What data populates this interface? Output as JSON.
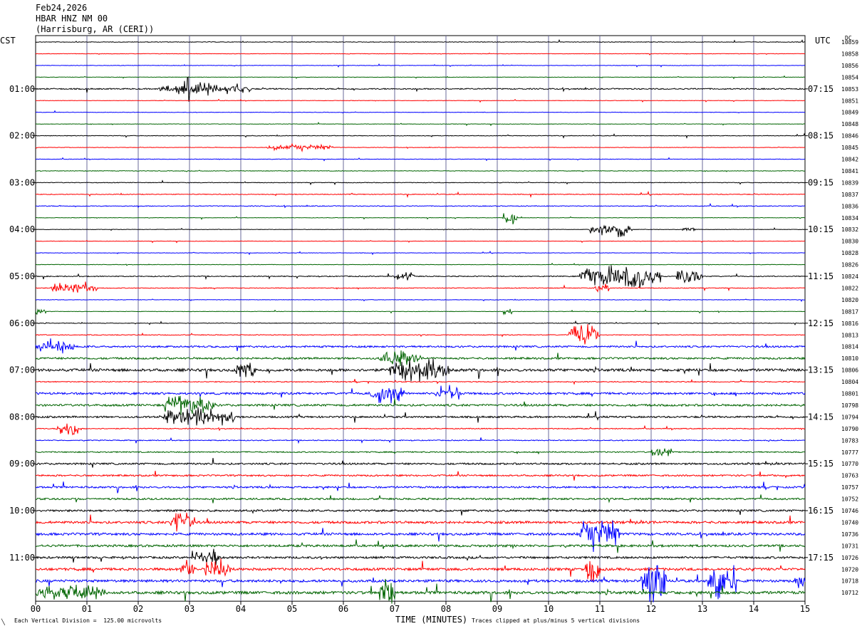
{
  "header": {
    "date": "Feb24,2026",
    "channel": "HBAR HNZ NM 00",
    "location": "(Harrisburg, AR (CERI))"
  },
  "left_timezone": "CST",
  "right_timezone": "UTC",
  "dc_label": "DC",
  "footer": {
    "x_title": "TIME (MINUTES)",
    "scale_note": "Each Vertical Division =  125.00 microvolts",
    "clip_note": "Traces clipped at plus/minus 5 vertical divisions",
    "corner_mark": "╲"
  },
  "chart_data": {
    "type": "line",
    "title": "HBAR HNZ NM 00",
    "xlabel": "TIME (MINUTES)",
    "x_range": [
      0,
      15
    ],
    "x_ticks": [
      "00",
      "01",
      "02",
      "03",
      "04",
      "05",
      "06",
      "07",
      "08",
      "09",
      "10",
      "11",
      "12",
      "13",
      "14",
      "15"
    ],
    "trace_colors": [
      "#000000",
      "#ff0000",
      "#0000ff",
      "#006400"
    ],
    "left_hour_labels": [
      "01:00",
      "02:00",
      "03:00",
      "04:00",
      "05:00",
      "06:00",
      "07:00",
      "08:00",
      "09:00",
      "10:00",
      "11:00"
    ],
    "right_hour_labels": [
      "07:15",
      "08:15",
      "09:15",
      "10:15",
      "11:15",
      "12:15",
      "13:15",
      "14:15",
      "15:15",
      "16:15",
      "17:15"
    ],
    "dc_offsets": [
      "10859",
      "10858",
      "10856",
      "10854",
      "10853",
      "10851",
      "10849",
      "10848",
      "10846",
      "10845",
      "10842",
      "10841",
      "10839",
      "10837",
      "10836",
      "10834",
      "10832",
      "10830",
      "10828",
      "10826",
      "10824",
      "10822",
      "10820",
      "10817",
      "10816",
      "10813",
      "10814",
      "10810",
      "10806",
      "10804",
      "10801",
      "10798",
      "10794",
      "10790",
      "10783",
      "10777",
      "10770",
      "10763",
      "10757",
      "10752",
      "10746",
      "10740",
      "10736",
      "10731",
      "10726",
      "10720",
      "10718",
      "10712"
    ],
    "trace_noise": [
      0.4,
      0.3,
      0.3,
      0.3,
      0.8,
      0.3,
      0.3,
      0.3,
      0.4,
      0.3,
      0.3,
      0.4,
      0.4,
      0.5,
      0.5,
      0.3,
      0.3,
      0.3,
      0.3,
      0.3,
      0.6,
      0.5,
      0.3,
      0.3,
      0.4,
      0.5,
      1.2,
      1.3,
      1.8,
      0.6,
      1.4,
      1.4,
      1.2,
      0.6,
      0.6,
      0.8,
      1.2,
      1.1,
      1.2,
      1.2,
      1.3,
      1.6,
      1.6,
      1.5,
      1.4,
      1.7,
      1.7,
      1.9
    ],
    "events": [
      {
        "trace": 4,
        "start_min": 2.4,
        "end_min": 4.2,
        "amplitude": 9
      },
      {
        "trace": 4,
        "start_min": 2.95,
        "end_min": 3.0,
        "amplitude": 48
      },
      {
        "trace": 9,
        "start_min": 4.5,
        "end_min": 5.8,
        "amplitude": 5
      },
      {
        "trace": 15,
        "start_min": 9.1,
        "end_min": 9.4,
        "amplitude": 10
      },
      {
        "trace": 16,
        "start_min": 10.8,
        "end_min": 11.6,
        "amplitude": 12
      },
      {
        "trace": 16,
        "start_min": 12.6,
        "end_min": 12.9,
        "amplitude": 4
      },
      {
        "trace": 20,
        "start_min": 10.6,
        "end_min": 12.2,
        "amplitude": 18
      },
      {
        "trace": 20,
        "start_min": 12.5,
        "end_min": 13.0,
        "amplitude": 14
      },
      {
        "trace": 20,
        "start_min": 7.0,
        "end_min": 7.4,
        "amplitude": 6
      },
      {
        "trace": 21,
        "start_min": 0.3,
        "end_min": 1.2,
        "amplitude": 10
      },
      {
        "trace": 21,
        "start_min": 10.9,
        "end_min": 11.2,
        "amplitude": 8
      },
      {
        "trace": 23,
        "start_min": 0.0,
        "end_min": 0.2,
        "amplitude": 6
      },
      {
        "trace": 23,
        "start_min": 9.1,
        "end_min": 9.3,
        "amplitude": 5
      },
      {
        "trace": 25,
        "start_min": 10.4,
        "end_min": 11.0,
        "amplitude": 16
      },
      {
        "trace": 26,
        "start_min": 0.0,
        "end_min": 0.8,
        "amplitude": 8
      },
      {
        "trace": 27,
        "start_min": 6.7,
        "end_min": 7.5,
        "amplitude": 10
      },
      {
        "trace": 28,
        "start_min": 6.9,
        "end_min": 8.1,
        "amplitude": 16
      },
      {
        "trace": 28,
        "start_min": 3.9,
        "end_min": 4.3,
        "amplitude": 12
      },
      {
        "trace": 30,
        "start_min": 6.5,
        "end_min": 7.2,
        "amplitude": 14
      },
      {
        "trace": 30,
        "start_min": 7.8,
        "end_min": 8.3,
        "amplitude": 12
      },
      {
        "trace": 31,
        "start_min": 2.5,
        "end_min": 3.5,
        "amplitude": 16
      },
      {
        "trace": 32,
        "start_min": 2.5,
        "end_min": 3.9,
        "amplitude": 14
      },
      {
        "trace": 33,
        "start_min": 0.4,
        "end_min": 0.9,
        "amplitude": 9
      },
      {
        "trace": 35,
        "start_min": 12.0,
        "end_min": 12.4,
        "amplitude": 9
      },
      {
        "trace": 41,
        "start_min": 2.6,
        "end_min": 3.1,
        "amplitude": 14
      },
      {
        "trace": 42,
        "start_min": 10.6,
        "end_min": 11.4,
        "amplitude": 26
      },
      {
        "trace": 44,
        "start_min": 3.1,
        "end_min": 3.6,
        "amplitude": 14
      },
      {
        "trace": 45,
        "start_min": 2.8,
        "end_min": 3.1,
        "amplitude": 16
      },
      {
        "trace": 45,
        "start_min": 3.3,
        "end_min": 3.8,
        "amplitude": 14
      },
      {
        "trace": 45,
        "start_min": 10.7,
        "end_min": 11.0,
        "amplitude": 18
      },
      {
        "trace": 46,
        "start_min": 11.8,
        "end_min": 12.3,
        "amplitude": 30
      },
      {
        "trace": 46,
        "start_min": 13.1,
        "end_min": 13.7,
        "amplitude": 30
      },
      {
        "trace": 46,
        "start_min": 14.8,
        "end_min": 15.0,
        "amplitude": 12
      },
      {
        "trace": 47,
        "start_min": 0.0,
        "end_min": 1.4,
        "amplitude": 10
      },
      {
        "trace": 47,
        "start_min": 6.7,
        "end_min": 7.0,
        "amplitude": 22
      }
    ]
  }
}
